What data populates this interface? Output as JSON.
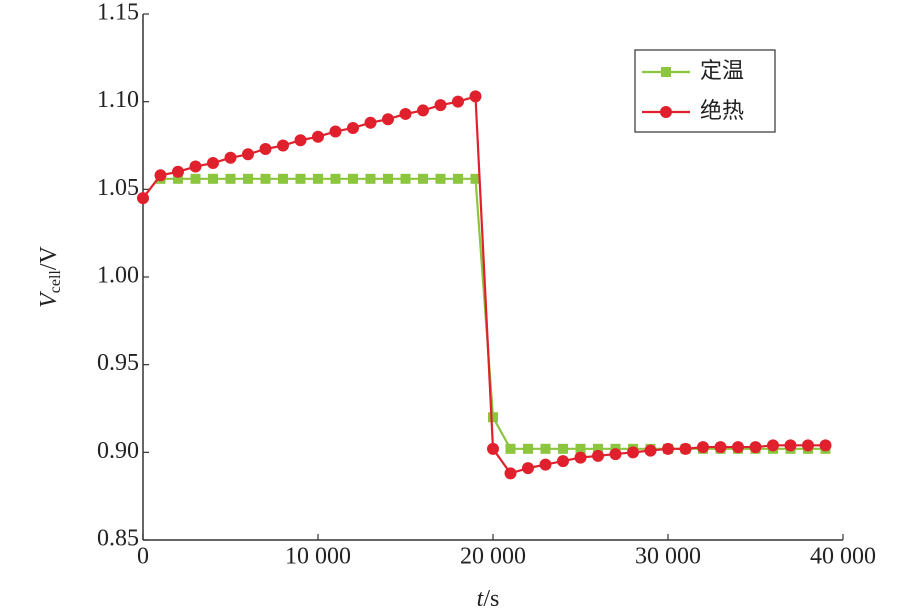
{
  "chart_data": {
    "type": "line",
    "ylabel_var": "V",
    "ylabel_sub": "cell",
    "ylabel_unit": "/V",
    "xlabel_var": "t",
    "xlabel_unit": "/s",
    "xlim": [
      0,
      40000
    ],
    "xticks": [
      0,
      {
        "value": 10000,
        "label": "10 000"
      },
      {
        "value": 20000,
        "label": "20 000"
      },
      {
        "value": 30000,
        "label": "30 000"
      },
      {
        "value": 40000,
        "label": "40 000"
      }
    ],
    "ylim": [
      0.85,
      1.15
    ],
    "yticks": [
      0.85,
      {
        "value": 0.9,
        "label": "0.90"
      },
      0.95,
      {
        "value": 1.0,
        "label": "1.00"
      },
      1.05,
      {
        "value": 1.1,
        "label": "1.10"
      },
      1.15
    ],
    "legend": "upper right",
    "series": [
      {
        "name": "定温",
        "color": "#8cc63f",
        "marker": "square",
        "x": [
          1000,
          2000,
          3000,
          4000,
          5000,
          6000,
          7000,
          8000,
          9000,
          10000,
          11000,
          12000,
          13000,
          14000,
          15000,
          16000,
          17000,
          18000,
          19000,
          20000,
          21000,
          22000,
          23000,
          24000,
          25000,
          26000,
          27000,
          28000,
          29000,
          30000,
          31000,
          32000,
          33000,
          34000,
          35000,
          36000,
          37000,
          38000,
          39000
        ],
        "values": [
          1.056,
          1.056,
          1.056,
          1.056,
          1.056,
          1.056,
          1.056,
          1.056,
          1.056,
          1.056,
          1.056,
          1.056,
          1.056,
          1.056,
          1.056,
          1.056,
          1.056,
          1.056,
          1.056,
          0.92,
          0.902,
          0.902,
          0.902,
          0.902,
          0.902,
          0.902,
          0.902,
          0.902,
          0.902,
          0.902,
          0.902,
          0.902,
          0.902,
          0.902,
          0.902,
          0.902,
          0.902,
          0.902,
          0.902
        ]
      },
      {
        "name": "绝热",
        "color": "#e0202c",
        "marker": "circle",
        "x": [
          0,
          1000,
          2000,
          3000,
          4000,
          5000,
          6000,
          7000,
          8000,
          9000,
          10000,
          11000,
          12000,
          13000,
          14000,
          15000,
          16000,
          17000,
          18000,
          19000,
          20000,
          21000,
          22000,
          23000,
          24000,
          25000,
          26000,
          27000,
          28000,
          29000,
          30000,
          31000,
          32000,
          33000,
          34000,
          35000,
          36000,
          37000,
          38000,
          39000
        ],
        "values": [
          1.045,
          1.058,
          1.06,
          1.063,
          1.065,
          1.068,
          1.07,
          1.073,
          1.075,
          1.078,
          1.08,
          1.083,
          1.085,
          1.088,
          1.09,
          1.093,
          1.095,
          1.098,
          1.1,
          1.103,
          0.902,
          0.888,
          0.891,
          0.893,
          0.895,
          0.897,
          0.898,
          0.899,
          0.9,
          0.901,
          0.902,
          0.902,
          0.903,
          0.903,
          0.903,
          0.903,
          0.904,
          0.904,
          0.904,
          0.904
        ]
      }
    ]
  }
}
